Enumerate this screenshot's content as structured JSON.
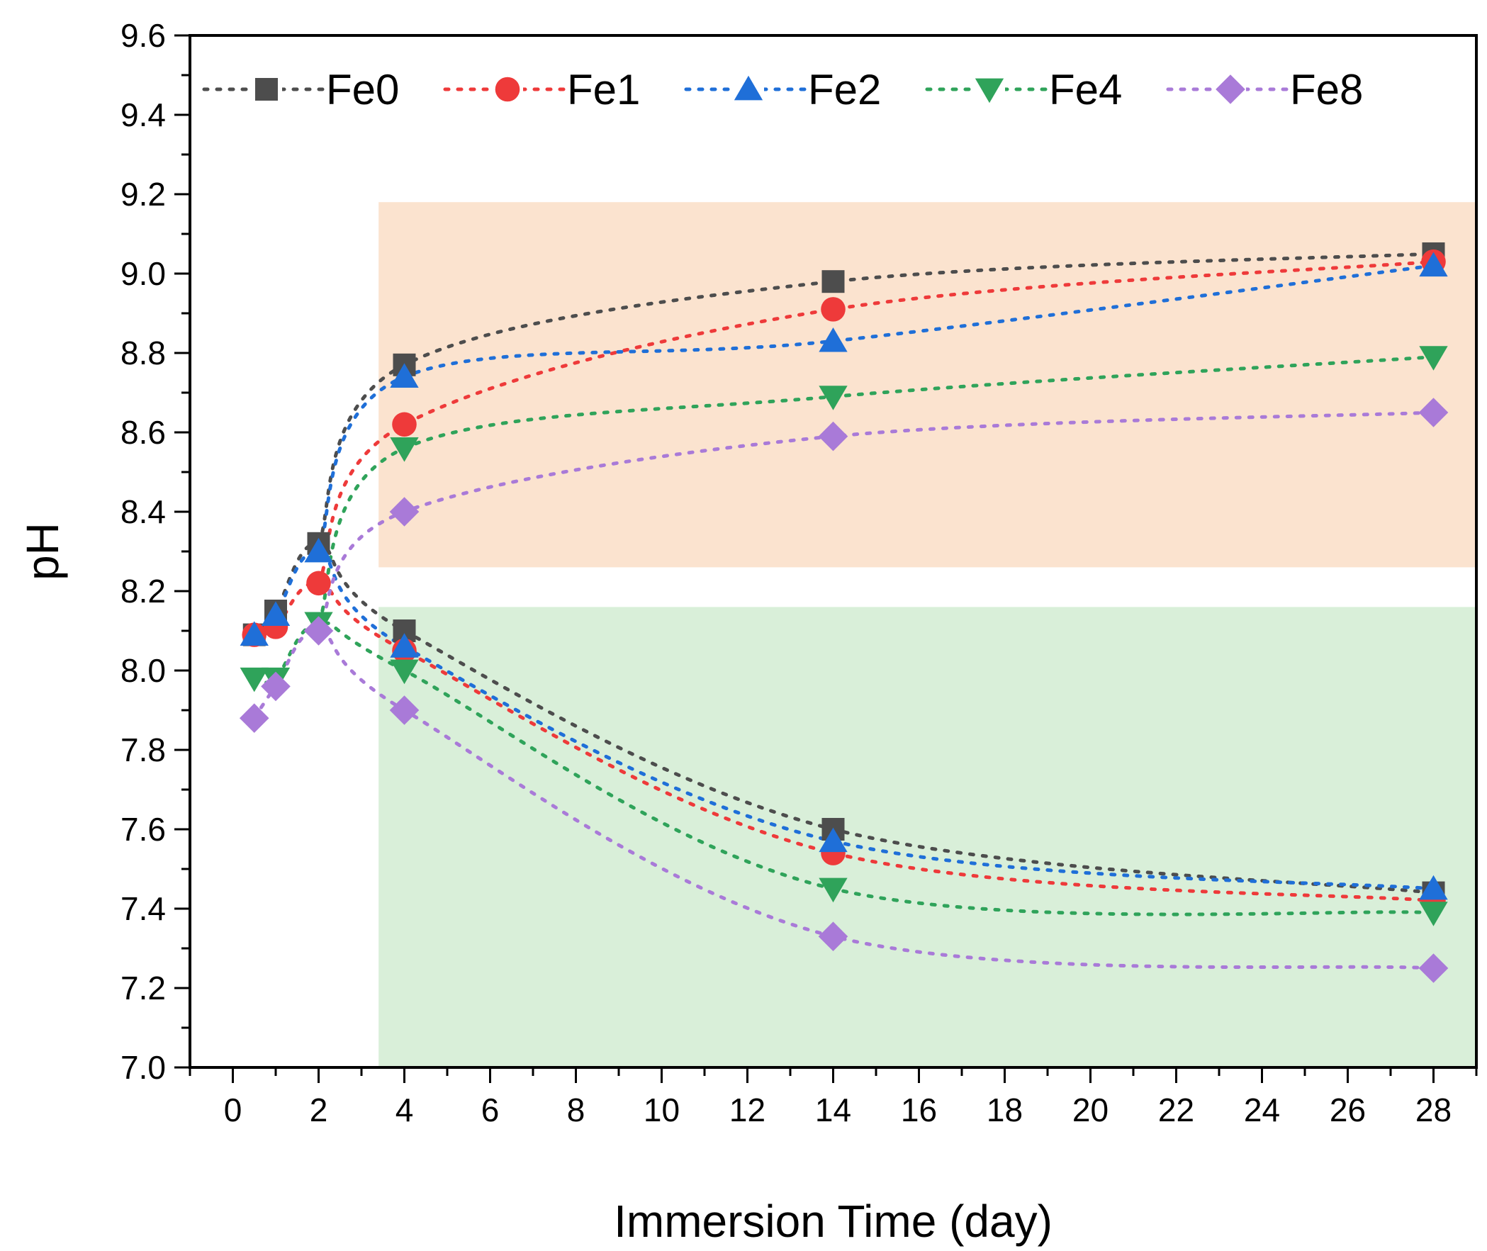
{
  "chart_data": {
    "type": "line",
    "title": "",
    "xlabel": "Immersion Time (day)",
    "ylabel": "pH",
    "xlim": [
      -1,
      29
    ],
    "ylim": [
      7.0,
      9.6
    ],
    "xticks": [
      0,
      2,
      4,
      6,
      8,
      10,
      12,
      14,
      16,
      18,
      20,
      22,
      24,
      26,
      28
    ],
    "yticks": [
      7.0,
      7.2,
      7.4,
      7.6,
      7.8,
      8.0,
      8.2,
      8.4,
      8.6,
      8.8,
      9.0,
      9.2,
      9.4,
      9.6
    ],
    "xtick_labels": [
      "0",
      "2",
      "4",
      "6",
      "8",
      "10",
      "12",
      "14",
      "16",
      "18",
      "20",
      "22",
      "24",
      "26",
      "28"
    ],
    "ytick_labels": [
      "7.0",
      "7.2",
      "7.4",
      "7.6",
      "7.8",
      "8.0",
      "8.2",
      "8.4",
      "8.6",
      "8.8",
      "9.0",
      "9.2",
      "9.4",
      "9.6"
    ],
    "legend_position": "top",
    "grid": false,
    "shaded_regions": [
      {
        "name": "upper-region",
        "x": [
          3.4,
          29
        ],
        "y": [
          8.26,
          9.18
        ],
        "color": "#fbe3cf"
      },
      {
        "name": "lower-region",
        "x": [
          3.4,
          29
        ],
        "y": [
          7.0,
          8.16
        ],
        "color": "#d9efd9"
      }
    ],
    "series": [
      {
        "name": "Fe0",
        "color": "#4d4d4d",
        "marker": "square",
        "x": [
          0.5,
          1,
          2,
          4,
          14,
          28
        ],
        "y": [
          8.09,
          8.15,
          8.32,
          8.1,
          7.6,
          7.44
        ],
        "upper_x": [
          4,
          14,
          28
        ],
        "upper_y": [
          8.77,
          8.98,
          9.05
        ]
      },
      {
        "name": "Fe1",
        "color": "#ee3a3a",
        "marker": "circle",
        "x": [
          0.5,
          1,
          2,
          4,
          14,
          28
        ],
        "y": [
          8.09,
          8.11,
          8.22,
          8.05,
          7.54,
          7.42
        ],
        "upper_x": [
          4,
          14,
          28
        ],
        "upper_y": [
          8.62,
          8.91,
          9.03
        ]
      },
      {
        "name": "Fe2",
        "color": "#1f6fd8",
        "marker": "triangle-up",
        "x": [
          0.5,
          1,
          2,
          4,
          14,
          28
        ],
        "y": [
          8.09,
          8.14,
          8.3,
          8.06,
          7.57,
          7.45
        ],
        "upper_x": [
          4,
          14,
          28
        ],
        "upper_y": [
          8.74,
          8.83,
          9.02
        ]
      },
      {
        "name": "Fe4",
        "color": "#2fa35a",
        "marker": "triangle-down",
        "x": [
          0.5,
          1,
          2,
          4,
          14,
          28
        ],
        "y": [
          7.98,
          7.98,
          8.12,
          8.0,
          7.45,
          7.39
        ],
        "upper_x": [
          4,
          14,
          28
        ],
        "upper_y": [
          8.56,
          8.69,
          8.79
        ]
      },
      {
        "name": "Fe8",
        "color": "#a97ad8",
        "marker": "diamond",
        "x": [
          0.5,
          1,
          2,
          4,
          14,
          28
        ],
        "y": [
          7.88,
          7.96,
          8.1,
          7.9,
          7.33,
          7.25
        ],
        "upper_x": [
          4,
          14,
          28
        ],
        "upper_y": [
          8.4,
          8.59,
          8.65
        ]
      }
    ]
  }
}
